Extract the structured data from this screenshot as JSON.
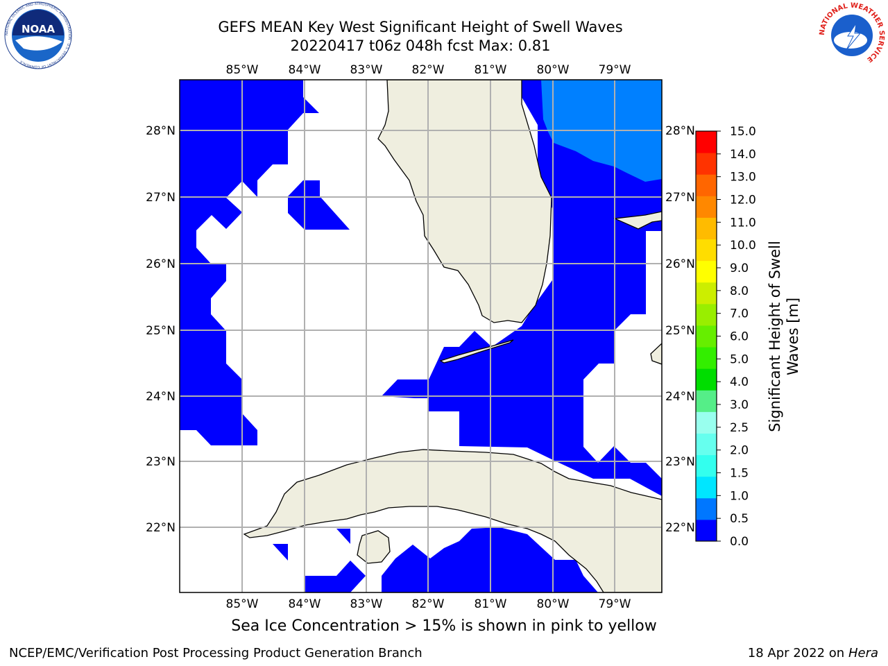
{
  "title_line1": "GEFS MEAN Key West Significant Height of Swell Waves",
  "title_line2": "20220417 t06z 048h fcst   Max: 0.81",
  "lon_labels": [
    "85°W",
    "84°W",
    "83°W",
    "82°W",
    "81°W",
    "80°W",
    "79°W"
  ],
  "lat_labels": [
    "28°N",
    "27°N",
    "26°N",
    "25°N",
    "24°N",
    "23°N",
    "22°N"
  ],
  "colorbar": {
    "label_line1": "Significant Height of Swell",
    "label_line2": "Waves [m]",
    "ticks": [
      "0.0",
      "0.5",
      "1.0",
      "1.5",
      "2.0",
      "2.5",
      "3.0",
      "4.0",
      "5.0",
      "6.0",
      "7.0",
      "8.0",
      "9.0",
      "10.0",
      "11.0",
      "12.0",
      "13.0",
      "14.0",
      "15.0"
    ],
    "colors": [
      "#0000ff",
      "#0077ff",
      "#00e6ff",
      "#33ffee",
      "#66ffee",
      "#99ffee",
      "#55ee88",
      "#00dd00",
      "#33ee00",
      "#66ee00",
      "#99ee00",
      "#ccee00",
      "#ffff00",
      "#ffdd00",
      "#ffbb00",
      "#ff8800",
      "#ff6600",
      "#ff3300",
      "#ff0000"
    ]
  },
  "colors": {
    "ocean_low": "#0000ff",
    "ocean_mid": "#0080ff",
    "land": "#efeedf",
    "grid": "#b0b0b0"
  },
  "note": "Sea Ice Concentration > 15% is shown in pink to yellow",
  "footer_left": "NCEP/EMC/Verification Post Processing Product Generation Branch",
  "footer_right_date": "18 Apr 2022 on ",
  "footer_right_host": "Hera",
  "logo_left_text": "NOAA",
  "logo_left_ring": "NATIONAL OCEANIC AND ATMOSPHERIC ADMINISTRATION · U.S. DEPARTMENT OF COMMERCE",
  "logo_right_ring": "NATIONAL WEATHER SERVICE"
}
